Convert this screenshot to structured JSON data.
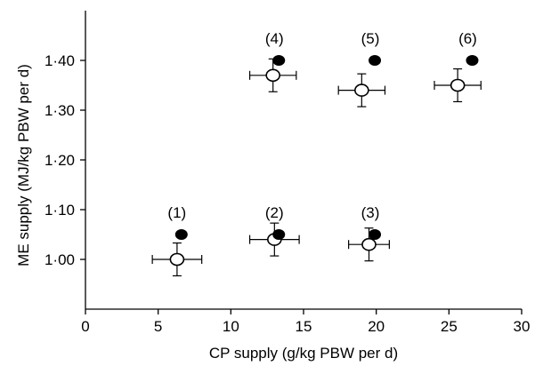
{
  "chart_data": {
    "type": "scatter",
    "title": "",
    "xlabel": "CP supply (g/kg PBW per d)",
    "ylabel": "ME supply (MJ/kg PBW per d)",
    "xlim": [
      0,
      30
    ],
    "ylim": [
      0.9,
      1.5
    ],
    "x_ticks": [
      "0",
      "5",
      "10",
      "15",
      "20",
      "25",
      "30"
    ],
    "y_ticks": [
      {
        "value": 1.0,
        "label": "1·00"
      },
      {
        "value": 1.1,
        "label": "1·10"
      },
      {
        "value": 1.2,
        "label": "1·20"
      },
      {
        "value": 1.3,
        "label": "1·30"
      },
      {
        "value": 1.4,
        "label": "1·40"
      }
    ],
    "grid": false,
    "legend": "none",
    "series": [
      {
        "marker": "filled-circle",
        "color": "#000000",
        "points": [
          {
            "x": 6.6,
            "y": 1.05
          },
          {
            "x": 13.3,
            "y": 1.05
          },
          {
            "x": 19.9,
            "y": 1.05
          },
          {
            "x": 13.3,
            "y": 1.4
          },
          {
            "x": 19.9,
            "y": 1.4
          },
          {
            "x": 26.6,
            "y": 1.4
          }
        ]
      },
      {
        "marker": "open-circle",
        "color": "#000000",
        "error_bars": true,
        "points": [
          {
            "x": 6.3,
            "y": 1.0,
            "xerr": 1.7,
            "yerr": 0.033
          },
          {
            "x": 13.0,
            "y": 1.04,
            "xerr": 1.7,
            "yerr": 0.033
          },
          {
            "x": 19.5,
            "y": 1.03,
            "xerr": 1.4,
            "yerr": 0.033
          },
          {
            "x": 12.9,
            "y": 1.37,
            "xerr": 1.6,
            "yerr": 0.033
          },
          {
            "x": 19.0,
            "y": 1.34,
            "xerr": 1.6,
            "yerr": 0.033
          },
          {
            "x": 25.6,
            "y": 1.35,
            "xerr": 1.6,
            "yerr": 0.033
          }
        ]
      }
    ],
    "annotations": [
      {
        "text": "(1)",
        "x": 6.6,
        "y": 1.05
      },
      {
        "text": "(2)",
        "x": 13.3,
        "y": 1.05
      },
      {
        "text": "(3)",
        "x": 19.9,
        "y": 1.05
      },
      {
        "text": "(4)",
        "x": 13.3,
        "y": 1.4
      },
      {
        "text": "(5)",
        "x": 19.9,
        "y": 1.4
      },
      {
        "text": "(6)",
        "x": 26.6,
        "y": 1.4
      }
    ]
  }
}
